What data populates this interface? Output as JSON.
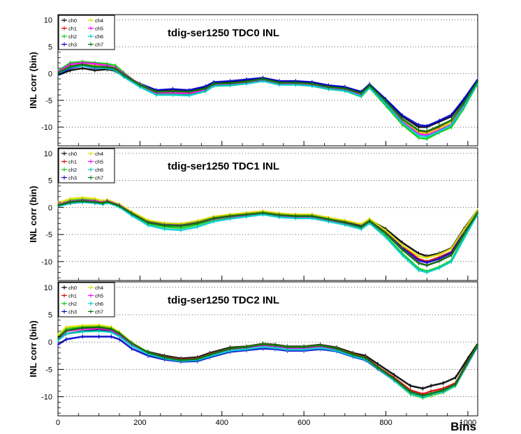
{
  "chart_data": [
    {
      "type": "line",
      "title": "tdig-ser1250 TDC0 INL",
      "ylabel": "INL corr (bin)",
      "xlabel": "",
      "xlim": [
        0,
        1024
      ],
      "ylim": [
        -13.5,
        11
      ],
      "xticks": [
        0,
        200,
        400,
        600,
        800,
        1000
      ],
      "yticks": [
        10,
        5,
        0,
        -5,
        -10
      ],
      "show_x_tick_labels": false,
      "grid": "horizontal dotted",
      "legend_position": "top-left",
      "x": [
        0,
        30,
        60,
        90,
        120,
        140,
        160,
        200,
        240,
        280,
        320,
        360,
        380,
        420,
        460,
        500,
        540,
        580,
        620,
        660,
        700,
        740,
        760,
        800,
        840,
        880,
        900,
        930,
        960,
        990,
        1024
      ],
      "series": [
        {
          "name": "ch0",
          "color": "#000000",
          "values": [
            -0.3,
            0.6,
            1.0,
            0.6,
            0.8,
            0.5,
            -0.5,
            -2.0,
            -3.2,
            -3.0,
            -3.3,
            -2.5,
            -1.8,
            -1.6,
            -1.3,
            -0.9,
            -1.5,
            -1.5,
            -1.7,
            -2.3,
            -2.6,
            -3.5,
            -2.0,
            -5.0,
            -8.0,
            -10.0,
            -10.0,
            -9.0,
            -8.0,
            -5.0,
            -1.2
          ]
        },
        {
          "name": "ch1",
          "color": "#dd0000",
          "values": [
            -0.1,
            1.2,
            1.7,
            1.3,
            1.2,
            0.7,
            -0.4,
            -2.2,
            -3.4,
            -3.2,
            -3.5,
            -2.8,
            -2.0,
            -1.9,
            -1.5,
            -1.1,
            -1.7,
            -1.7,
            -1.9,
            -2.5,
            -2.9,
            -3.8,
            -2.3,
            -5.5,
            -8.6,
            -10.8,
            -11.0,
            -10.0,
            -9.0,
            -5.8,
            -1.5
          ]
        },
        {
          "name": "ch2",
          "color": "#00cc00",
          "values": [
            0.5,
            2.0,
            2.2,
            2.0,
            1.8,
            1.5,
            0.2,
            -2.2,
            -3.8,
            -3.8,
            -3.9,
            -3.3,
            -2.3,
            -2.2,
            -1.8,
            -1.3,
            -2.0,
            -2.0,
            -2.3,
            -2.9,
            -3.2,
            -4.3,
            -2.6,
            -6.0,
            -9.5,
            -12.0,
            -12.2,
            -11.0,
            -10.0,
            -6.5,
            -1.8
          ]
        },
        {
          "name": "ch3",
          "color": "#0000cc",
          "values": [
            -0.2,
            1.0,
            1.5,
            1.0,
            1.1,
            0.7,
            -0.3,
            -1.9,
            -3.1,
            -2.9,
            -3.1,
            -2.4,
            -1.6,
            -1.4,
            -1.1,
            -0.8,
            -1.4,
            -1.4,
            -1.6,
            -2.2,
            -2.5,
            -3.4,
            -2.0,
            -4.8,
            -7.8,
            -9.6,
            -9.8,
            -8.8,
            -7.7,
            -4.8,
            -1.1
          ]
        },
        {
          "name": "ch4",
          "color": "#dddd00",
          "values": [
            0.2,
            1.4,
            1.8,
            1.5,
            1.4,
            1.0,
            -0.1,
            -2.0,
            -3.5,
            -3.4,
            -3.6,
            -2.9,
            -2.0,
            -1.9,
            -1.6,
            -1.1,
            -1.8,
            -1.8,
            -2.0,
            -2.6,
            -2.9,
            -3.9,
            -2.3,
            -5.3,
            -8.7,
            -11.0,
            -11.2,
            -10.3,
            -9.0,
            -5.8,
            -1.5
          ]
        },
        {
          "name": "ch5",
          "color": "#ff00ff",
          "values": [
            0.3,
            1.7,
            2.0,
            1.8,
            1.5,
            1.1,
            0.0,
            -2.1,
            -3.6,
            -3.6,
            -3.7,
            -3.0,
            -2.1,
            -2.0,
            -1.7,
            -1.2,
            -1.9,
            -1.9,
            -2.1,
            -2.7,
            -3.0,
            -4.0,
            -2.4,
            -5.6,
            -9.0,
            -11.3,
            -11.5,
            -10.6,
            -9.5,
            -6.0,
            -1.6
          ]
        },
        {
          "name": "ch6",
          "color": "#00cccc",
          "values": [
            0.0,
            1.2,
            1.5,
            1.1,
            1.0,
            0.6,
            -0.6,
            -2.5,
            -4.0,
            -4.0,
            -4.1,
            -3.3,
            -2.3,
            -2.2,
            -1.9,
            -1.4,
            -2.1,
            -2.1,
            -2.3,
            -2.9,
            -3.2,
            -4.2,
            -2.5,
            -5.7,
            -9.2,
            -11.6,
            -11.8,
            -10.8,
            -9.6,
            -6.2,
            -1.7
          ]
        },
        {
          "name": "ch7",
          "color": "#007700",
          "values": [
            0.1,
            1.3,
            1.7,
            1.3,
            1.2,
            0.9,
            -0.2,
            -2.1,
            -3.4,
            -3.3,
            -3.4,
            -2.8,
            -1.9,
            -1.8,
            -1.5,
            -1.0,
            -1.7,
            -1.7,
            -1.9,
            -2.5,
            -2.8,
            -3.7,
            -2.2,
            -5.2,
            -8.5,
            -10.6,
            -10.8,
            -9.8,
            -8.7,
            -5.5,
            -1.4
          ]
        }
      ]
    },
    {
      "type": "line",
      "title": "tdig-ser1250 TDC1 INL",
      "ylabel": "INL corr (bin)",
      "xlabel": "",
      "xlim": [
        0,
        1024
      ],
      "ylim": [
        -13.5,
        11
      ],
      "xticks": [
        0,
        200,
        400,
        600,
        800,
        1000
      ],
      "yticks": [
        10,
        5,
        0,
        -5,
        -10
      ],
      "show_x_tick_labels": false,
      "grid": "horizontal dotted",
      "legend_position": "top-left",
      "x": [
        0,
        30,
        60,
        90,
        110,
        120,
        150,
        180,
        220,
        260,
        300,
        340,
        380,
        420,
        460,
        500,
        540,
        580,
        620,
        660,
        700,
        740,
        760,
        800,
        840,
        880,
        900,
        930,
        960,
        990,
        1024
      ],
      "series": [
        {
          "name": "ch0",
          "color": "#000000",
          "values": [
            0.3,
            0.8,
            1.0,
            0.9,
            0.7,
            1.0,
            0.3,
            -1.0,
            -2.5,
            -3.0,
            -3.1,
            -2.6,
            -1.8,
            -1.4,
            -1.1,
            -0.8,
            -1.2,
            -1.4,
            -1.4,
            -2.0,
            -2.6,
            -3.3,
            -2.3,
            -4.0,
            -6.5,
            -8.5,
            -9.0,
            -8.5,
            -7.5,
            -4.0,
            -0.5
          ]
        },
        {
          "name": "ch1",
          "color": "#dd0000",
          "values": [
            0.4,
            1.0,
            1.2,
            1.1,
            0.8,
            1.1,
            0.3,
            -1.1,
            -2.7,
            -3.2,
            -3.3,
            -2.8,
            -2.0,
            -1.6,
            -1.3,
            -1.0,
            -1.4,
            -1.6,
            -1.6,
            -2.2,
            -2.8,
            -3.5,
            -2.5,
            -4.5,
            -7.2,
            -9.5,
            -10.0,
            -9.2,
            -8.2,
            -4.5,
            -0.8
          ]
        },
        {
          "name": "ch2",
          "color": "#00cc00",
          "values": [
            0.6,
            1.3,
            1.5,
            1.3,
            1.0,
            1.3,
            0.5,
            -1.2,
            -3.0,
            -3.6,
            -3.8,
            -3.2,
            -2.3,
            -1.9,
            -1.5,
            -1.2,
            -1.6,
            -1.8,
            -1.8,
            -2.4,
            -3.0,
            -3.8,
            -2.7,
            -5.3,
            -8.5,
            -11.3,
            -11.8,
            -11.0,
            -9.8,
            -5.5,
            -1.0
          ]
        },
        {
          "name": "ch3",
          "color": "#0000cc",
          "values": [
            0.3,
            0.8,
            1.1,
            0.9,
            0.7,
            1.0,
            0.2,
            -1.2,
            -2.7,
            -3.2,
            -3.3,
            -2.8,
            -2.0,
            -1.6,
            -1.3,
            -1.0,
            -1.4,
            -1.6,
            -1.6,
            -2.2,
            -2.8,
            -3.5,
            -2.5,
            -4.6,
            -7.5,
            -9.8,
            -10.2,
            -9.5,
            -8.4,
            -4.7,
            -0.8
          ]
        },
        {
          "name": "ch4",
          "color": "#dddd00",
          "values": [
            0.8,
            1.6,
            1.8,
            1.6,
            1.2,
            1.4,
            0.6,
            -0.8,
            -2.4,
            -2.9,
            -3.0,
            -2.5,
            -1.7,
            -1.3,
            -1.0,
            -0.7,
            -1.1,
            -1.3,
            -1.3,
            -1.9,
            -2.4,
            -3.1,
            -2.1,
            -4.3,
            -7.0,
            -9.0,
            -9.3,
            -8.7,
            -7.6,
            -4.2,
            -0.5
          ]
        },
        {
          "name": "ch5",
          "color": "#ff00ff",
          "values": [
            0.5,
            1.1,
            1.3,
            1.2,
            0.9,
            1.2,
            0.4,
            -1.1,
            -2.8,
            -3.3,
            -3.4,
            -2.9,
            -2.1,
            -1.7,
            -1.4,
            -1.1,
            -1.5,
            -1.7,
            -1.7,
            -2.3,
            -2.9,
            -3.6,
            -2.6,
            -4.8,
            -7.8,
            -10.2,
            -10.7,
            -9.9,
            -8.8,
            -5.0,
            -0.9
          ]
        },
        {
          "name": "ch6",
          "color": "#00cccc",
          "values": [
            0.2,
            0.8,
            1.0,
            0.8,
            0.6,
            0.9,
            0.1,
            -1.5,
            -3.3,
            -4.0,
            -4.2,
            -3.6,
            -2.6,
            -2.1,
            -1.7,
            -1.3,
            -1.8,
            -2.0,
            -2.0,
            -2.6,
            -3.2,
            -4.0,
            -2.9,
            -5.5,
            -8.8,
            -11.6,
            -12.0,
            -11.2,
            -10.0,
            -5.8,
            -1.2
          ]
        },
        {
          "name": "ch7",
          "color": "#007700",
          "values": [
            0.4,
            1.0,
            1.2,
            1.0,
            0.8,
            1.1,
            0.3,
            -1.1,
            -2.8,
            -3.3,
            -3.4,
            -2.9,
            -2.0,
            -1.6,
            -1.3,
            -1.0,
            -1.4,
            -1.6,
            -1.6,
            -2.2,
            -2.8,
            -3.6,
            -2.5,
            -4.8,
            -7.8,
            -10.3,
            -10.7,
            -9.9,
            -8.8,
            -5.0,
            -0.9
          ]
        }
      ]
    },
    {
      "type": "line",
      "title": "tdig-ser1250 TDC2 INL",
      "ylabel": "INL corr (bin)",
      "xlabel": "Bins",
      "xlim": [
        0,
        1024
      ],
      "ylim": [
        -13.5,
        11
      ],
      "xticks": [
        0,
        200,
        400,
        600,
        800,
        1000
      ],
      "yticks": [
        10,
        5,
        0,
        -5,
        -10
      ],
      "show_x_tick_labels": true,
      "grid": "horizontal dotted",
      "legend_position": "top-left",
      "x": [
        0,
        20,
        60,
        100,
        130,
        150,
        180,
        220,
        260,
        300,
        340,
        370,
        420,
        460,
        500,
        530,
        560,
        600,
        640,
        680,
        720,
        750,
        780,
        820,
        860,
        890,
        910,
        940,
        970,
        1000,
        1024
      ],
      "series": [
        {
          "name": "ch0",
          "color": "#000000",
          "values": [
            0.5,
            1.5,
            2.0,
            2.2,
            2.0,
            1.2,
            -0.5,
            -1.8,
            -2.5,
            -3.0,
            -2.8,
            -2.0,
            -1.0,
            -0.8,
            -0.3,
            -0.5,
            -0.8,
            -0.8,
            -0.5,
            -1.0,
            -2.0,
            -2.5,
            -4.0,
            -6.0,
            -8.0,
            -8.5,
            -8.0,
            -7.5,
            -6.5,
            -3.0,
            -0.3
          ]
        },
        {
          "name": "ch1",
          "color": "#dd0000",
          "values": [
            0.8,
            2.0,
            2.5,
            2.6,
            2.3,
            1.5,
            -0.3,
            -1.9,
            -2.7,
            -3.2,
            -3.0,
            -2.2,
            -1.2,
            -0.9,
            -0.4,
            -0.6,
            -0.9,
            -0.9,
            -0.6,
            -1.2,
            -2.2,
            -2.8,
            -4.5,
            -6.5,
            -8.8,
            -9.5,
            -9.0,
            -8.5,
            -7.5,
            -3.5,
            -0.5
          ]
        },
        {
          "name": "ch2",
          "color": "#00cc00",
          "values": [
            1.0,
            2.5,
            2.8,
            2.9,
            2.6,
            1.7,
            -0.2,
            -2.0,
            -2.9,
            -3.4,
            -3.2,
            -2.4,
            -1.3,
            -1.0,
            -0.5,
            -0.7,
            -1.0,
            -1.0,
            -0.7,
            -1.3,
            -2.4,
            -3.0,
            -4.8,
            -7.0,
            -9.5,
            -10.2,
            -9.8,
            -9.2,
            -8.0,
            -3.8,
            -0.6
          ]
        },
        {
          "name": "ch3",
          "color": "#0000cc",
          "values": [
            -0.5,
            0.5,
            1.0,
            1.0,
            1.0,
            0.5,
            -1.2,
            -2.5,
            -3.2,
            -3.6,
            -3.5,
            -2.8,
            -1.8,
            -1.5,
            -1.2,
            -1.3,
            -1.6,
            -1.6,
            -1.3,
            -1.7,
            -2.7,
            -3.3,
            -4.9,
            -7.0,
            -9.3,
            -10.0,
            -9.5,
            -9.0,
            -7.9,
            -3.9,
            -0.7
          ]
        },
        {
          "name": "ch4",
          "color": "#dddd00",
          "values": [
            1.2,
            2.7,
            3.0,
            3.1,
            2.7,
            1.8,
            -0.1,
            -1.9,
            -2.8,
            -3.3,
            -3.1,
            -2.3,
            -1.2,
            -0.9,
            -0.4,
            -0.6,
            -0.9,
            -0.9,
            -0.6,
            -1.2,
            -2.3,
            -2.9,
            -4.7,
            -6.9,
            -9.4,
            -10.1,
            -9.7,
            -9.1,
            -7.9,
            -3.7,
            -0.5
          ]
        },
        {
          "name": "ch5",
          "color": "#ff00ff",
          "values": [
            0.7,
            2.0,
            2.4,
            2.5,
            2.2,
            1.4,
            -0.4,
            -2.0,
            -2.8,
            -3.3,
            -3.1,
            -2.3,
            -1.3,
            -1.0,
            -0.6,
            -0.8,
            -1.1,
            -1.1,
            -0.8,
            -1.4,
            -2.4,
            -3.0,
            -4.7,
            -6.8,
            -9.2,
            -9.9,
            -9.5,
            -8.9,
            -7.8,
            -3.7,
            -0.6
          ]
        },
        {
          "name": "ch6",
          "color": "#00cccc",
          "values": [
            0.3,
            1.5,
            1.9,
            2.0,
            1.8,
            1.0,
            -0.7,
            -2.2,
            -3.0,
            -3.5,
            -3.3,
            -2.6,
            -1.6,
            -1.3,
            -0.9,
            -1.1,
            -1.4,
            -1.4,
            -1.1,
            -1.6,
            -2.6,
            -3.2,
            -4.8,
            -7.0,
            -9.4,
            -10.1,
            -9.6,
            -9.1,
            -7.9,
            -3.8,
            -0.6
          ]
        },
        {
          "name": "ch7",
          "color": "#007700",
          "values": [
            0.8,
            2.1,
            2.6,
            2.7,
            2.4,
            1.6,
            -0.2,
            -1.9,
            -2.8,
            -3.3,
            -3.1,
            -2.3,
            -1.2,
            -0.9,
            -0.4,
            -0.6,
            -0.9,
            -0.9,
            -0.6,
            -1.2,
            -2.3,
            -2.9,
            -4.6,
            -6.7,
            -9.1,
            -9.8,
            -9.4,
            -8.8,
            -7.7,
            -3.6,
            -0.5
          ]
        }
      ]
    }
  ]
}
